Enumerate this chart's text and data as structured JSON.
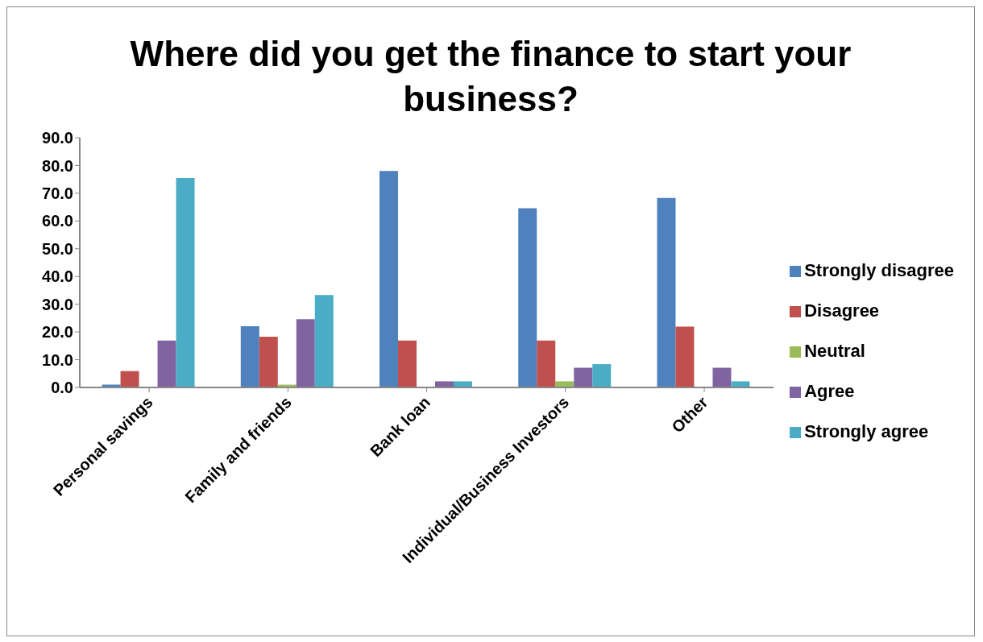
{
  "chart_data": {
    "type": "bar",
    "title": "Where did you get the finance to start your business?",
    "categories": [
      "Personal savings",
      "Family and friends",
      "Bank loan",
      "Individual/Business Investors",
      "Other"
    ],
    "series": [
      {
        "name": "Strongly disagree",
        "color": "#4f81bd",
        "values": [
          1.0,
          22.1,
          78.0,
          64.6,
          68.3
        ]
      },
      {
        "name": "Disagree",
        "color": "#c0504d",
        "values": [
          5.9,
          18.3,
          16.9,
          16.9,
          21.9
        ]
      },
      {
        "name": "Neutral",
        "color": "#9bbb59",
        "values": [
          0,
          1.0,
          0,
          2.2,
          0
        ]
      },
      {
        "name": "Agree",
        "color": "#8064a2",
        "values": [
          16.9,
          24.6,
          2.2,
          7.1,
          7.1
        ]
      },
      {
        "name": "Strongly agree",
        "color": "#4bacc6",
        "values": [
          75.5,
          33.3,
          2.2,
          8.4,
          2.2
        ]
      }
    ],
    "ylim": [
      0,
      90
    ],
    "yticks": [
      {
        "value": 0,
        "label": "0.0"
      },
      {
        "value": 10,
        "label": "10.0"
      },
      {
        "value": 20,
        "label": "20.0"
      },
      {
        "value": 30,
        "label": "30.0"
      },
      {
        "value": 40,
        "label": "40.0"
      },
      {
        "value": 50,
        "label": "50.0"
      },
      {
        "value": 60,
        "label": "60.0"
      },
      {
        "value": 70,
        "label": "70.0"
      },
      {
        "value": 80,
        "label": "80.0"
      },
      {
        "value": 90,
        "label": "90.0"
      }
    ],
    "grid": false,
    "legend": "right"
  }
}
